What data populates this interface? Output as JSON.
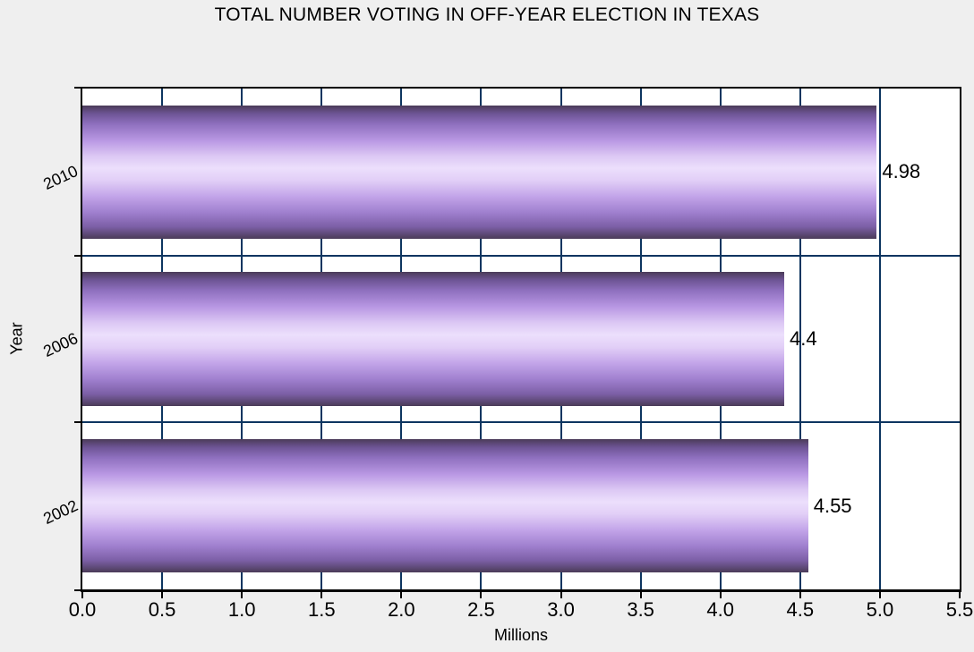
{
  "title": "TOTAL NUMBER VOTING IN OFF-YEAR ELECTION IN TEXAS",
  "chart_data": {
    "type": "bar",
    "orientation": "horizontal",
    "title": "TOTAL NUMBER VOTING IN OFF-YEAR ELECTION IN TEXAS",
    "categories": [
      "2010",
      "2006",
      "2002"
    ],
    "values": [
      4.98,
      4.4,
      4.55
    ],
    "value_labels": [
      "4.98",
      "4.4",
      "4.55"
    ],
    "xlabel": "Millions",
    "ylabel": "Year",
    "xlim": [
      0,
      5.5
    ],
    "xticks": [
      "0.0",
      "0.5",
      "1.0",
      "1.5",
      "2.0",
      "2.5",
      "3.0",
      "3.5",
      "4.0",
      "4.5",
      "5.0",
      "5.5"
    ],
    "grid": true,
    "gridline_step": 0.5,
    "legend": false
  },
  "colors": {
    "background": "#efefef",
    "plot_background": "#ffffff",
    "frame": "#000000",
    "gridline": "#0d3560",
    "bar_edge_dark": "#4a3b58",
    "bar_mid_purple": "#a080cf",
    "bar_highlight": "#ecdffc",
    "text": "#000000"
  }
}
